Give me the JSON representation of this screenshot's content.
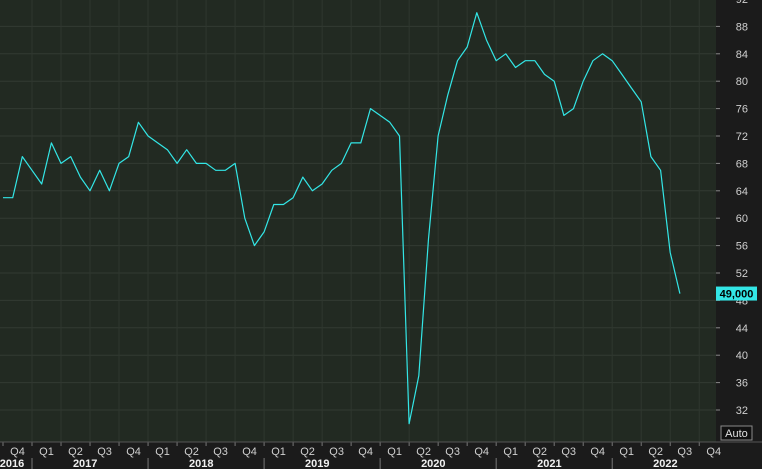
{
  "chart_data": {
    "type": "line",
    "title": "",
    "xlabel": "",
    "ylabel": "",
    "ylim": [
      28,
      93
    ],
    "yticks": [
      32,
      36,
      40,
      44,
      48,
      52,
      56,
      60,
      64,
      68,
      72,
      76,
      80,
      84,
      88,
      92
    ],
    "grid": true,
    "x_quarter_labels": [
      "Q4",
      "Q1",
      "Q2",
      "Q3",
      "Q4",
      "Q1",
      "Q2",
      "Q3",
      "Q4",
      "Q1",
      "Q2",
      "Q3",
      "Q4",
      "Q1",
      "Q2",
      "Q3",
      "Q4",
      "Q1",
      "Q2",
      "Q3",
      "Q4",
      "Q1",
      "Q2",
      "Q3",
      "Q4"
    ],
    "x_year_labels": [
      "2016",
      "2017",
      "2018",
      "2019",
      "2020",
      "2021",
      "2022"
    ],
    "x_start_month": 10,
    "x_start_year": 2016,
    "series": [
      {
        "color": "#33e6e6",
        "values": [
          63,
          63,
          69,
          67,
          65,
          71,
          68,
          69,
          66,
          64,
          67,
          64,
          68,
          69,
          74,
          72,
          71,
          70,
          68,
          70,
          68,
          68,
          67,
          67,
          68,
          60,
          56,
          58,
          62,
          62,
          63,
          66,
          64,
          65,
          67,
          68,
          71,
          71,
          76,
          75,
          74,
          72,
          30,
          37,
          57,
          72,
          78,
          83,
          85,
          90,
          86,
          83,
          84,
          82,
          83,
          83,
          81,
          80,
          75,
          76,
          80,
          83,
          84,
          83,
          81,
          79,
          77,
          69,
          67,
          55,
          49
        ]
      }
    ],
    "last_value_label": "49,000",
    "last_value": 49,
    "auto_label": "Auto"
  }
}
